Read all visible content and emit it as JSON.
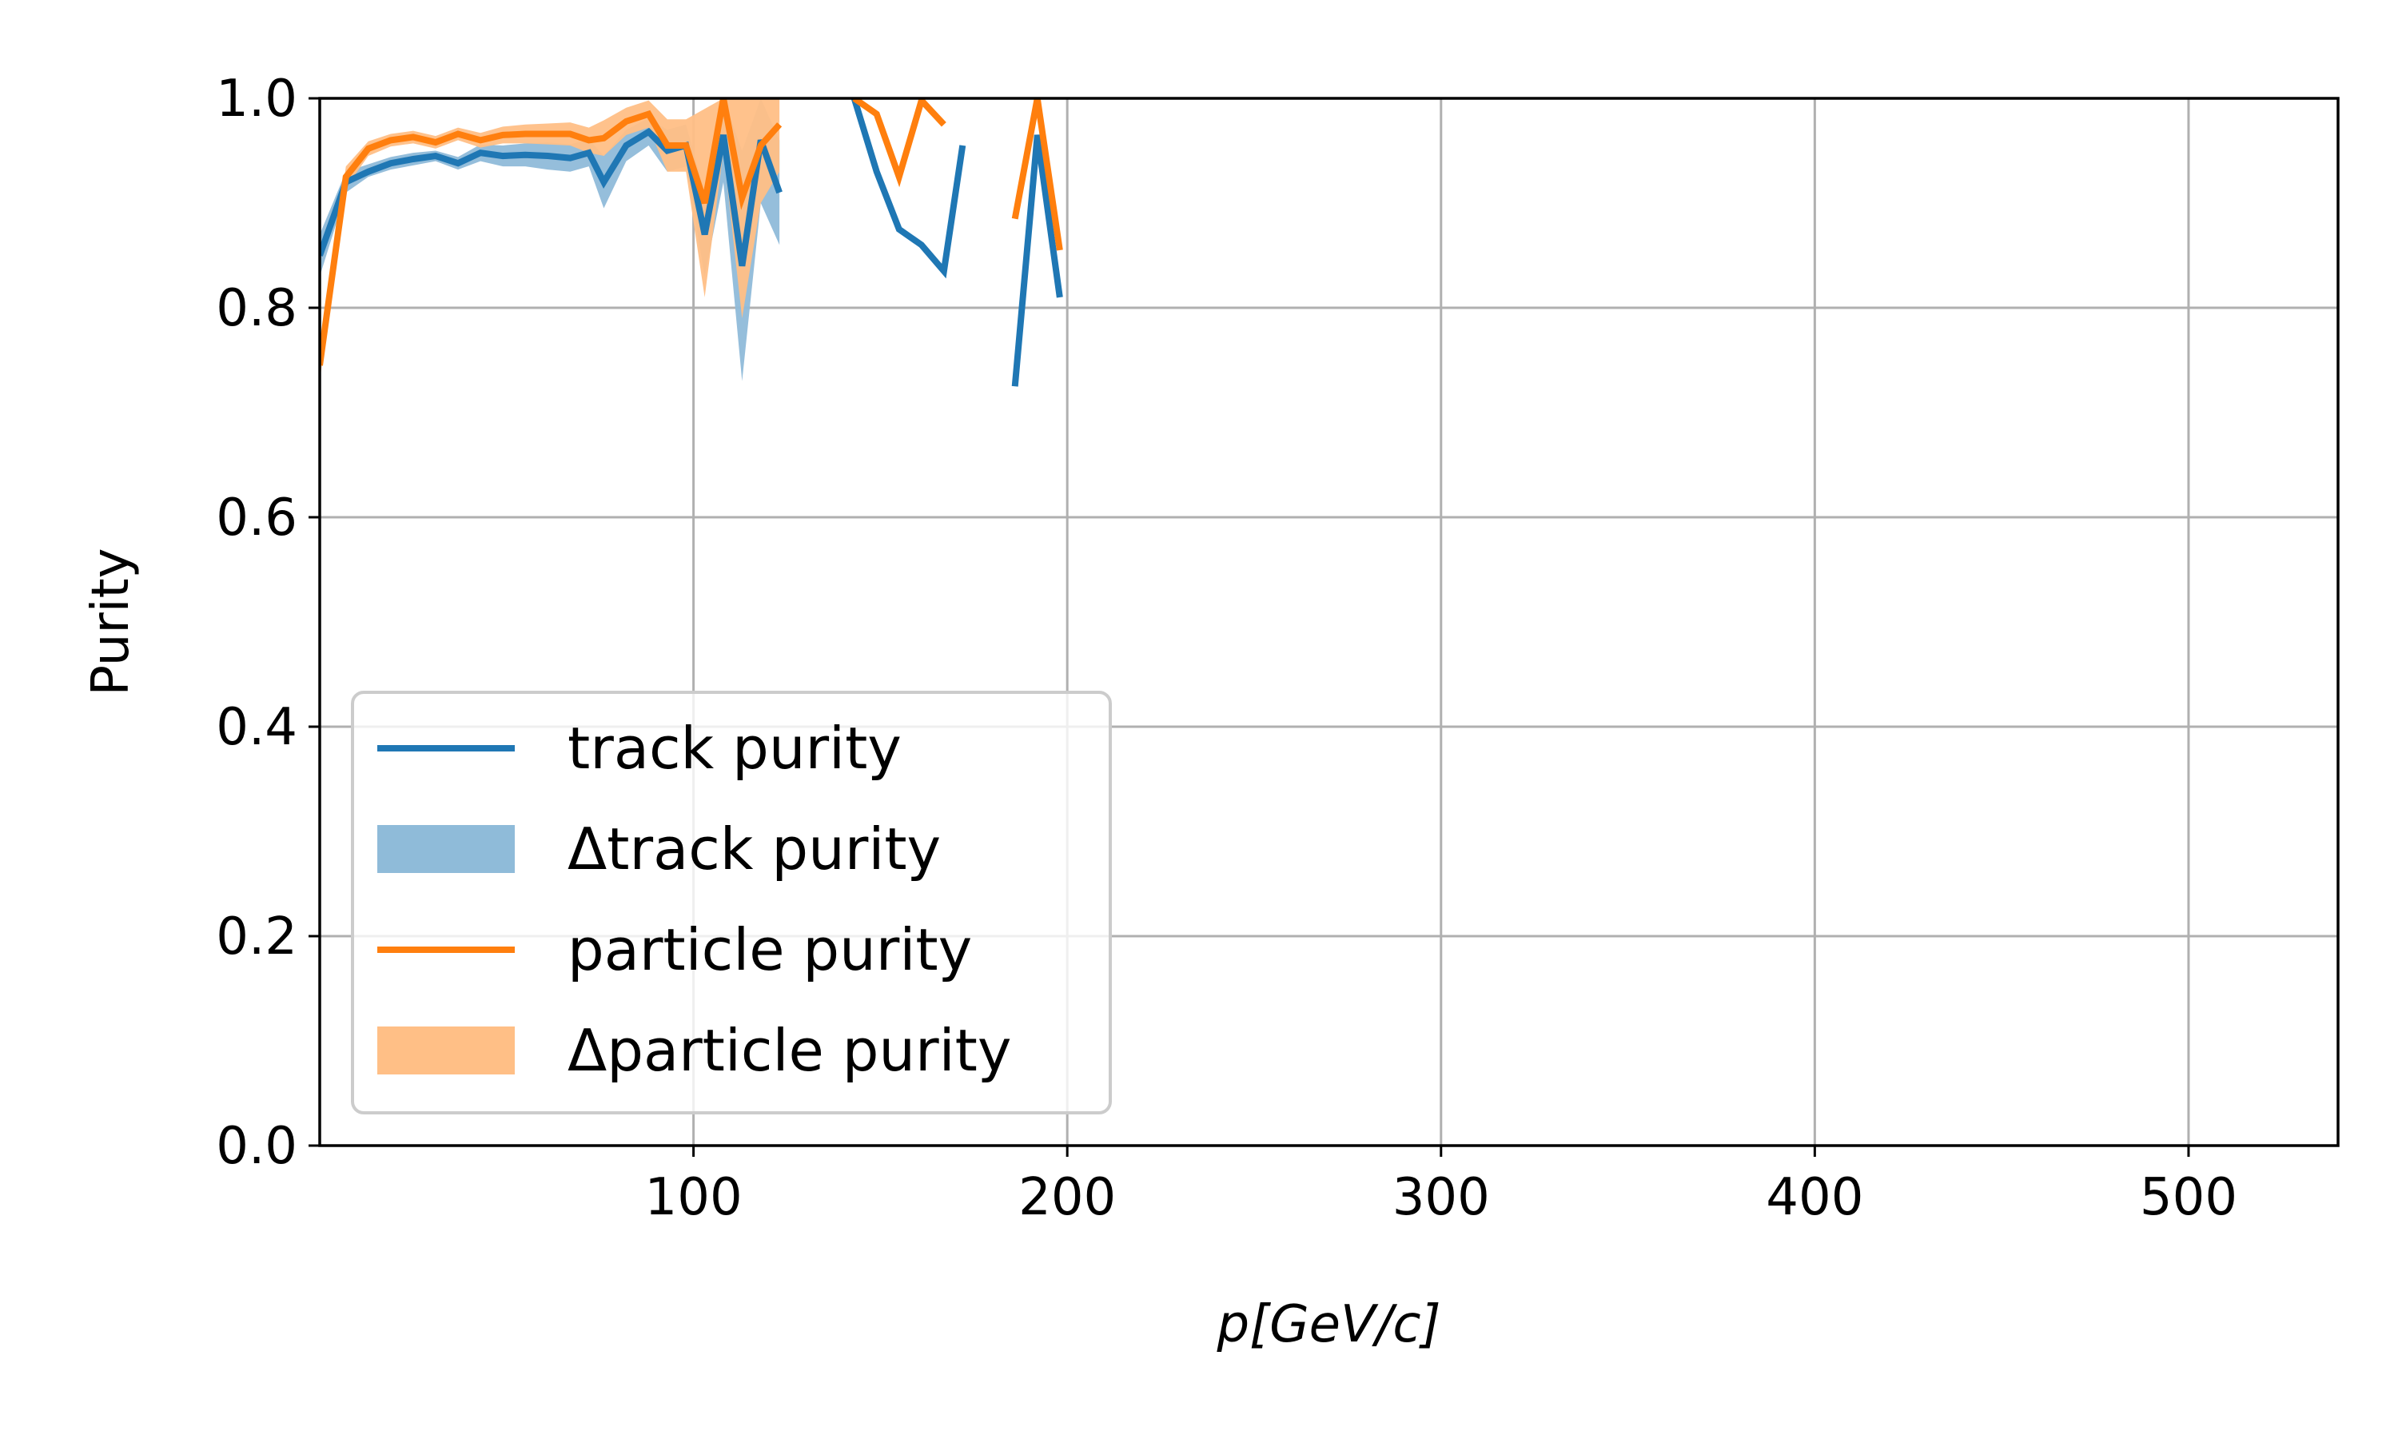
{
  "chart_data": {
    "type": "line",
    "title": "",
    "xlabel": "p[GeV/c]",
    "ylabel": "Purity",
    "xlim": [
      0,
      540
    ],
    "ylim": [
      0.0,
      1.0
    ],
    "xticks": [
      100,
      200,
      300,
      400,
      500
    ],
    "yticks": [
      0.0,
      0.2,
      0.4,
      0.6,
      0.8,
      1.0
    ],
    "ytick_labels": [
      "0.0",
      "0.2",
      "0.4",
      "0.6",
      "0.8",
      "1.0"
    ],
    "grid": true,
    "legend_position": "lower-left",
    "colors": {
      "track": "#1f77b4",
      "track_band": "#8fbbd9",
      "particle": "#ff7f0e",
      "particle_band": "#ffbf86"
    },
    "series": [
      {
        "name": "track purity",
        "kind": "line",
        "color": "#1f77b4",
        "segments": [
          [
            [
              0,
              0.85
            ],
            [
              7,
              0.92
            ],
            [
              13,
              0.93
            ],
            [
              19,
              0.938
            ],
            [
              25,
              0.942
            ],
            [
              31,
              0.945
            ],
            [
              37,
              0.938
            ],
            [
              43,
              0.948
            ],
            [
              49,
              0.945
            ],
            [
              55,
              0.946
            ],
            [
              61,
              0.945
            ],
            [
              67,
              0.943
            ],
            [
              72,
              0.948
            ],
            [
              76,
              0.92
            ],
            [
              82,
              0.955
            ],
            [
              88,
              0.968
            ],
            [
              93,
              0.95
            ],
            [
              98,
              0.955
            ],
            [
              103,
              0.87
            ],
            [
              108,
              0.965
            ],
            [
              113,
              0.84
            ],
            [
              118,
              0.96
            ],
            [
              123,
              0.91
            ]
          ],
          [
            [
              143,
              1.0
            ],
            [
              149,
              0.93
            ],
            [
              155,
              0.875
            ],
            [
              161,
              0.86
            ],
            [
              167,
              0.835
            ],
            [
              172,
              0.955
            ]
          ],
          [
            [
              186,
              0.725
            ],
            [
              192,
              0.965
            ],
            [
              198,
              0.81
            ]
          ]
        ]
      },
      {
        "name": "Δtrack purity",
        "kind": "band",
        "color": "#8fbbd9",
        "x": [
          0,
          7,
          13,
          19,
          25,
          31,
          37,
          43,
          49,
          55,
          61,
          67,
          72,
          76,
          82,
          88,
          93,
          98,
          103,
          108,
          113,
          118,
          123
        ],
        "lower": [
          0.83,
          0.91,
          0.925,
          0.932,
          0.936,
          0.94,
          0.932,
          0.94,
          0.935,
          0.935,
          0.932,
          0.93,
          0.935,
          0.895,
          0.94,
          0.955,
          0.93,
          0.935,
          0.83,
          0.92,
          0.73,
          0.9,
          0.86
        ],
        "upper": [
          0.87,
          0.93,
          0.937,
          0.944,
          0.948,
          0.95,
          0.944,
          0.956,
          0.955,
          0.957,
          0.958,
          0.956,
          0.961,
          0.945,
          0.97,
          0.981,
          0.97,
          0.975,
          0.91,
          1.0,
          0.95,
          1.0,
          0.96
        ]
      },
      {
        "name": "particle purity",
        "kind": "line",
        "color": "#ff7f0e",
        "segments": [
          [
            [
              0,
              0.745
            ],
            [
              7,
              0.925
            ],
            [
              13,
              0.952
            ],
            [
              19,
              0.96
            ],
            [
              25,
              0.963
            ],
            [
              31,
              0.958
            ],
            [
              37,
              0.966
            ],
            [
              43,
              0.96
            ],
            [
              49,
              0.965
            ],
            [
              55,
              0.966
            ],
            [
              61,
              0.966
            ],
            [
              67,
              0.966
            ],
            [
              72,
              0.96
            ],
            [
              76,
              0.962
            ],
            [
              82,
              0.978
            ],
            [
              88,
              0.985
            ],
            [
              93,
              0.955
            ],
            [
              98,
              0.955
            ],
            [
              103,
              0.9
            ],
            [
              108,
              1.0
            ],
            [
              113,
              0.905
            ],
            [
              118,
              0.955
            ],
            [
              123,
              0.975
            ]
          ],
          [
            [
              143,
              1.0
            ],
            [
              149,
              0.985
            ],
            [
              155,
              0.925
            ],
            [
              161,
              0.998
            ],
            [
              167,
              0.975
            ]
          ],
          [
            [
              186,
              0.885
            ],
            [
              192,
              1.0
            ],
            [
              198,
              0.855
            ]
          ]
        ]
      },
      {
        "name": "Δparticle purity",
        "kind": "band",
        "color": "#ffbf86",
        "x": [
          0,
          7,
          13,
          19,
          25,
          31,
          37,
          43,
          49,
          55,
          61,
          67,
          72,
          76,
          82,
          88,
          93,
          98,
          103,
          108,
          113,
          118,
          123
        ],
        "lower": [
          0.73,
          0.915,
          0.945,
          0.954,
          0.957,
          0.952,
          0.96,
          0.953,
          0.957,
          0.957,
          0.956,
          0.955,
          0.948,
          0.945,
          0.965,
          0.972,
          0.93,
          0.93,
          0.81,
          0.95,
          0.79,
          0.9,
          0.93
        ],
        "upper": [
          0.76,
          0.935,
          0.959,
          0.966,
          0.969,
          0.964,
          0.972,
          0.967,
          0.973,
          0.975,
          0.976,
          0.977,
          0.972,
          0.979,
          0.991,
          0.998,
          0.98,
          0.98,
          0.99,
          1.0,
          1.0,
          1.0,
          1.0
        ]
      }
    ],
    "legend": [
      {
        "label": "track purity",
        "style": "line",
        "color": "#1f77b4"
      },
      {
        "label": "Δtrack purity",
        "style": "patch",
        "color": "#8fbbd9"
      },
      {
        "label": "particle purity",
        "style": "line",
        "color": "#ff7f0e"
      },
      {
        "label": "Δparticle purity",
        "style": "patch",
        "color": "#ffbf86"
      }
    ]
  }
}
